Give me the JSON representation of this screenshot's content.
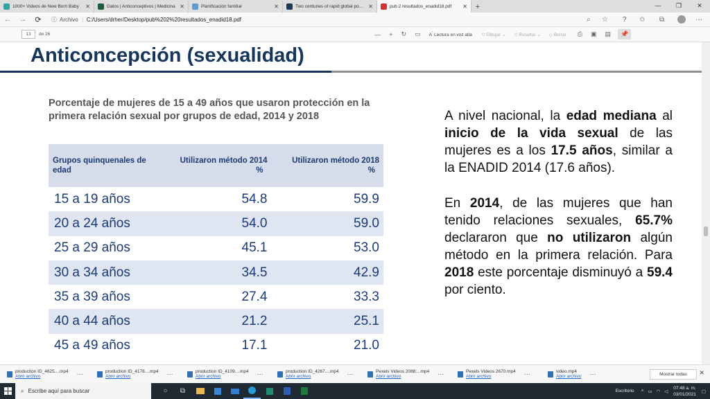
{
  "browser": {
    "tabs": [
      {
        "title": "1000+ Videos de New Born Baby",
        "color": "#2aa6a3"
      },
      {
        "title": "Datos | Anticonceptivos | Medicina",
        "color": "#1b5e3c"
      },
      {
        "title": "Planificación familiar",
        "color": "#5b9bd5"
      },
      {
        "title": "Two centuries of rapid global popula",
        "color": "#1d3557"
      },
      {
        "title": "pub 2 resultados_enadid18.pdf",
        "color": "#d13438"
      }
    ],
    "close_glyph": "✕",
    "new_tab": "+",
    "address_label": "Archivo",
    "url": "C:/Users/drher/Desktop/pub%202%20resultados_enadid18.pdf"
  },
  "pdf": {
    "page": "13",
    "of_pages": "de 26",
    "read_aloud": "Lectura en voz alta",
    "draw": "Dibujar",
    "highlight": "Resaltar",
    "erase": "Borrar"
  },
  "slide": {
    "heading": "Anticoncepción (sexualidad)",
    "caption": "Porcentaje de mujeres de 15 a 49 años que usaron protección en la primera relación sexual por grupos de edad, 2014 y 2018",
    "col1": "Grupos quinquenales de edad",
    "col2": "Utilizaron método 2014",
    "col3": "Utilizaron método 2018",
    "pct": "%",
    "rows": [
      {
        "g": "15 a 19 años",
        "a": "54.8",
        "b": "59.9"
      },
      {
        "g": "20 a 24 años",
        "a": "54.0",
        "b": "59.0"
      },
      {
        "g": "25 a 29 años",
        "a": "45.1",
        "b": "53.0"
      },
      {
        "g": "30 a 34 años",
        "a": "34.5",
        "b": "42.9"
      },
      {
        "g": "35 a 39 años",
        "a": "27.4",
        "b": "33.3"
      },
      {
        "g": "40 a 44 años",
        "a": "21.2",
        "b": "25.1"
      },
      {
        "g": "45 a 49 años",
        "a": "17.1",
        "b": "21.0"
      }
    ],
    "p1": {
      "s1": "A nivel nacional, la ",
      "b1": "edad mediana",
      "s2": " al ",
      "b2": "inicio de la vida sexual",
      "s3": " de las mujeres es a los ",
      "b3": "17.5 años",
      "s4": ", similar a la ENADID 2014 (17.6 años)."
    },
    "p2": {
      "s1": "En ",
      "b1": "2014",
      "s2": ", de las mujeres que han tenido relaciones sexuales, ",
      "b2": "65.7%",
      "s3": " declararon que ",
      "b3": "no utilizaron",
      "s4": " algún método en la primera relación. Para ",
      "b4": "2018",
      "s5": " este porcentaje disminuyó a ",
      "b5": "59.4",
      "s6": " por ciento."
    }
  },
  "downloads": {
    "items": [
      {
        "name": "production ID_4625....mp4",
        "link": "Abrir archivo"
      },
      {
        "name": "production ID_4178....mp4",
        "link": "Abrir archivo"
      },
      {
        "name": "production ID_4109....mp4",
        "link": "Abrir archivo"
      },
      {
        "name": "production ID_4267....mp4",
        "link": "Abrir archivo"
      },
      {
        "name": "Pexels Videos 2088:...mp4",
        "link": "Abrir archivo"
      },
      {
        "name": "Pexels Videos 2670.mp4",
        "link": "Abrir archivo"
      },
      {
        "name": "video.mp4",
        "link": "Abrir archivo"
      }
    ],
    "more": "···",
    "show_all": "Mostrar todas"
  },
  "taskbar": {
    "search_placeholder": "Escribe aquí para buscar",
    "desktop": "Escritorio",
    "time": "07:48 a. m.",
    "date": "03/01/2021"
  }
}
